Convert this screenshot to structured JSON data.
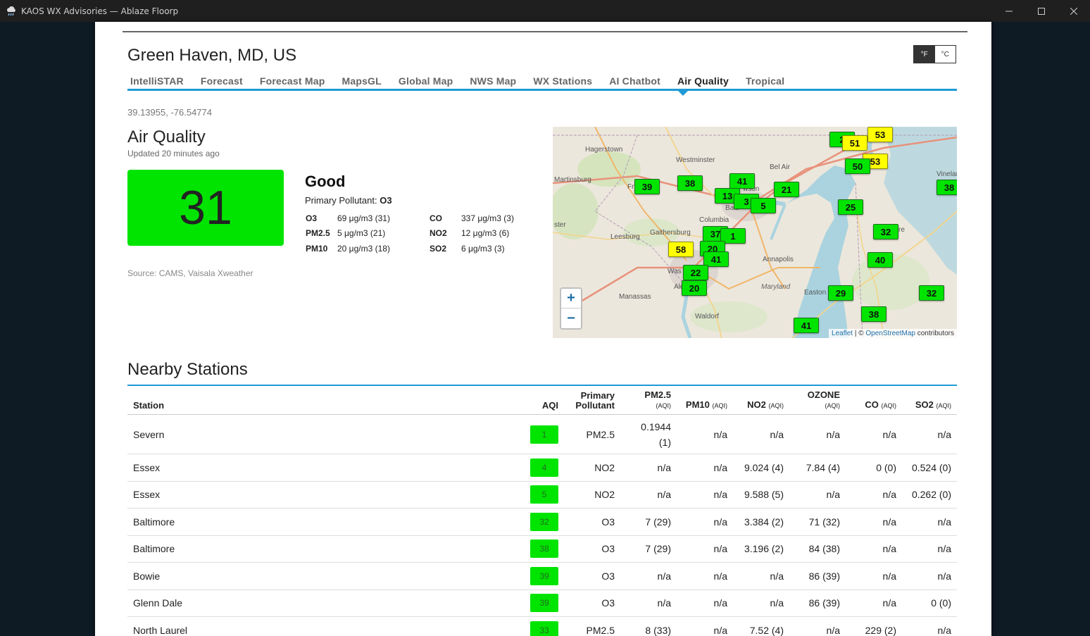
{
  "window": {
    "title": "KAOS WX Advisories — Ablaze Floorp"
  },
  "header": {
    "city": "Green Haven, MD, US",
    "unit_f": "°F",
    "unit_c": "°C"
  },
  "tabs": [
    "IntelliSTAR",
    "Forecast",
    "Forecast Map",
    "MapsGL",
    "Global Map",
    "NWS Map",
    "WX Stations",
    "AI Chatbot",
    "Air Quality",
    "Tropical"
  ],
  "coords": "39.13955, -76.54774",
  "air_quality": {
    "title": "Air Quality",
    "updated": "Updated 20 minutes ago",
    "aqi": "31",
    "category": "Good",
    "primary_label": "Primary Pollutant:",
    "primary_value": "O3",
    "pollutants": [
      {
        "name": "O3",
        "value": "69 μg/m3 (31)"
      },
      {
        "name": "CO",
        "value": "337 μg/m3 (3)"
      },
      {
        "name": "PM2.5",
        "value": "5 μg/m3 (21)"
      },
      {
        "name": "NO2",
        "value": "12 μg/m3 (6)"
      },
      {
        "name": "PM10",
        "value": "20 μg/m3 (18)"
      },
      {
        "name": "SO2",
        "value": "6 μg/m3 (3)"
      }
    ],
    "source": "Source: CAMS, Vaisala Xweather"
  },
  "map": {
    "zoom_in": "+",
    "zoom_out": "−",
    "attribution_leaflet": "Leaflet",
    "attribution_sep": " | © ",
    "attribution_osm": "OpenStreetMap",
    "attribution_tail": " contributors",
    "places": [
      "Hagerstown",
      "Westminster",
      "Bel Air",
      "Martinsburg",
      "Fr",
      "Balti",
      "Columbia",
      "Gaithersburg",
      "Leesburg",
      "ster",
      "Annapolis",
      "Maryland",
      "Easton",
      "Manassas",
      "Waldorf",
      "Was",
      "Ale",
      "Vinelan",
      "re",
      "wson"
    ],
    "markers": [
      "2",
      "53",
      "51",
      "53",
      "50",
      "39",
      "38",
      "41",
      "13",
      "3",
      "5",
      "21",
      "25",
      "38",
      "37",
      "1",
      "32",
      "58",
      "20",
      "41",
      "40",
      "29",
      "32",
      "38",
      "41",
      "20",
      "22"
    ]
  },
  "stations": {
    "title": "Nearby Stations",
    "columns": [
      {
        "label": "Station",
        "sub": ""
      },
      {
        "label": "AQI",
        "sub": ""
      },
      {
        "label": "Primary Pollutant",
        "sub": ""
      },
      {
        "label": "PM2.5",
        "sub": "(AQI)"
      },
      {
        "label": "PM10",
        "sub": "(AQI)"
      },
      {
        "label": "NO2",
        "sub": "(AQI)"
      },
      {
        "label": "OZONE",
        "sub": "(AQI)"
      },
      {
        "label": "CO",
        "sub": "(AQI)"
      },
      {
        "label": "SO2",
        "sub": "(AQI)"
      }
    ],
    "rows": [
      {
        "station": "Severn",
        "aqi": "1",
        "primary": "PM2.5",
        "pm25": "0.1944 (1)",
        "pm10": "n/a",
        "no2": "n/a",
        "ozone": "n/a",
        "co": "n/a",
        "so2": "n/a"
      },
      {
        "station": "Essex",
        "aqi": "4",
        "primary": "NO2",
        "pm25": "n/a",
        "pm10": "n/a",
        "no2": "9.024 (4)",
        "ozone": "7.84 (4)",
        "co": "0 (0)",
        "so2": "0.524 (0)"
      },
      {
        "station": "Essex",
        "aqi": "5",
        "primary": "NO2",
        "pm25": "n/a",
        "pm10": "n/a",
        "no2": "9.588 (5)",
        "ozone": "n/a",
        "co": "n/a",
        "so2": "0.262 (0)"
      },
      {
        "station": "Baltimore",
        "aqi": "32",
        "primary": "O3",
        "pm25": "7 (29)",
        "pm10": "n/a",
        "no2": "3.384 (2)",
        "ozone": "71 (32)",
        "co": "n/a",
        "so2": "n/a"
      },
      {
        "station": "Baltimore",
        "aqi": "38",
        "primary": "O3",
        "pm25": "7 (29)",
        "pm10": "n/a",
        "no2": "3.196 (2)",
        "ozone": "84 (38)",
        "co": "n/a",
        "so2": "n/a"
      },
      {
        "station": "Bowie",
        "aqi": "39",
        "primary": "O3",
        "pm25": "n/a",
        "pm10": "n/a",
        "no2": "n/a",
        "ozone": "86 (39)",
        "co": "n/a",
        "so2": "n/a"
      },
      {
        "station": "Glenn Dale",
        "aqi": "39",
        "primary": "O3",
        "pm25": "n/a",
        "pm10": "n/a",
        "no2": "n/a",
        "ozone": "86 (39)",
        "co": "n/a",
        "so2": "0 (0)"
      },
      {
        "station": "North Laurel",
        "aqi": "33",
        "primary": "PM2.5",
        "pm25": "8 (33)",
        "pm10": "n/a",
        "no2": "7.52 (4)",
        "ozone": "n/a",
        "co": "229 (2)",
        "so2": "n/a"
      }
    ]
  },
  "colors": {
    "accent": "#1f9ad6",
    "good": "#00e400",
    "moderate": "#ffff00"
  }
}
